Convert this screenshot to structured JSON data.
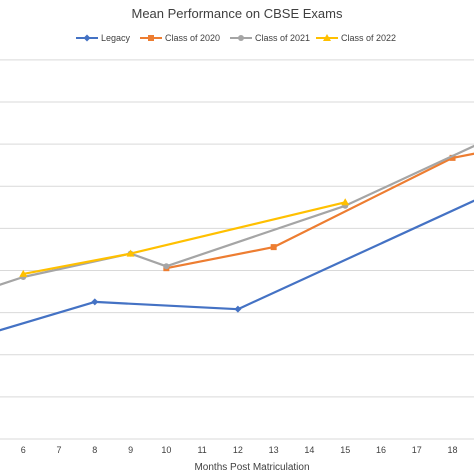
{
  "chart_data": {
    "type": "line",
    "title": "Mean Performance on CBSE Exams",
    "xlabel": "Months Post Matriculation",
    "ylabel": "",
    "x_ticks": [
      6,
      7,
      8,
      9,
      10,
      11,
      12,
      13,
      14,
      15,
      16,
      17,
      18
    ],
    "xlim": [
      5.35,
      18.6
    ],
    "ylim": [
      0,
      10
    ],
    "grid": true,
    "legend_position": "top",
    "series": [
      {
        "name": "Legacy",
        "color": "#4472C4",
        "marker": "diamond",
        "points": [
          [
            5.35,
            2.84
          ],
          [
            8,
            3.58
          ],
          [
            12,
            3.39
          ],
          [
            18.6,
            6.22
          ]
        ]
      },
      {
        "name": "Class of 2020",
        "color": "#ED7D31",
        "marker": "square",
        "points": [
          [
            10,
            4.46
          ],
          [
            13,
            5.01
          ],
          [
            18,
            7.34
          ],
          [
            18.6,
            7.45
          ]
        ]
      },
      {
        "name": "Class of 2021",
        "color": "#A5A5A5",
        "marker": "circle",
        "points": [
          [
            5.35,
            4.03
          ],
          [
            6,
            4.23
          ],
          [
            9,
            4.84
          ],
          [
            10,
            4.51
          ],
          [
            15,
            6.09
          ],
          [
            18.6,
            7.65
          ]
        ]
      },
      {
        "name": "Class of 2022",
        "color": "#FFC000",
        "marker": "triangle",
        "points": [
          [
            6,
            4.31
          ],
          [
            9,
            4.84
          ],
          [
            15,
            6.18
          ]
        ]
      }
    ]
  }
}
